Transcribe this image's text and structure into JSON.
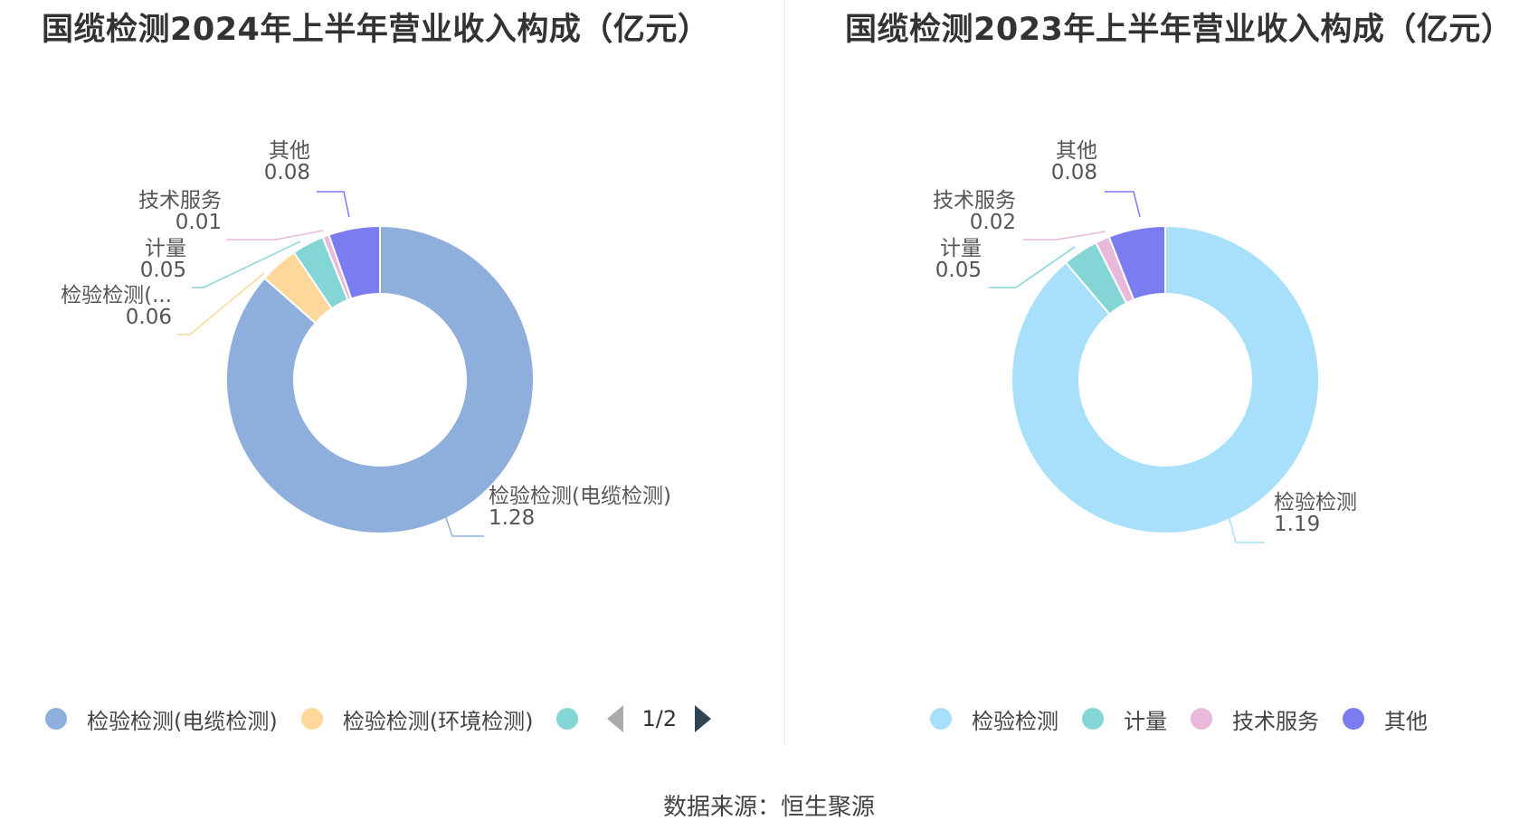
{
  "source": "数据来源：恒生聚源",
  "charts": [
    {
      "title": "国缆检测2024年上半年营业收入构成（亿元）",
      "pager": {
        "page": "1/2"
      },
      "legend": [
        {
          "label": "检验检测(电缆检测)",
          "color": "#8eaedb"
        },
        {
          "label": "检验检测(环境检测)",
          "color": "#fdd89a"
        },
        {
          "label": "",
          "color": "#84d5d6"
        }
      ]
    },
    {
      "title": "国缆检测2023年上半年营业收入构成（亿元）",
      "legend": [
        {
          "label": "检验检测",
          "color": "#a8dffa"
        },
        {
          "label": "计量",
          "color": "#84d5d6"
        },
        {
          "label": "技术服务",
          "color": "#e8b9da"
        },
        {
          "label": "其他",
          "color": "#7b7cf0"
        }
      ]
    }
  ],
  "chart_data": [
    {
      "type": "pie",
      "title": "国缆检测2024年上半年营业收入构成（亿元）",
      "categories": [
        "检验检测(电缆检测)",
        "检验检测(环境检测)",
        "计量",
        "技术服务",
        "其他"
      ],
      "values": [
        1.28,
        0.06,
        0.05,
        0.01,
        0.08
      ],
      "labels": [
        {
          "name": "检验检测(电缆检测)",
          "value": "1.28"
        },
        {
          "name": "检验检测(...",
          "value": "0.06"
        },
        {
          "name": "计量",
          "value": "0.05"
        },
        {
          "name": "技术服务",
          "value": "0.01"
        },
        {
          "name": "其他",
          "value": "0.08"
        }
      ],
      "colors": [
        "#8eaedb",
        "#fdd89a",
        "#84d5d6",
        "#e8b9da",
        "#7b7cf0"
      ]
    },
    {
      "type": "pie",
      "title": "国缆检测2023年上半年营业收入构成（亿元）",
      "categories": [
        "检验检测",
        "计量",
        "技术服务",
        "其他"
      ],
      "values": [
        1.19,
        0.05,
        0.02,
        0.08
      ],
      "labels": [
        {
          "name": "检验检测",
          "value": "1.19"
        },
        {
          "name": "计量",
          "value": "0.05"
        },
        {
          "name": "技术服务",
          "value": "0.02"
        },
        {
          "name": "其他",
          "value": "0.08"
        }
      ],
      "colors": [
        "#a8dffa",
        "#84d5d6",
        "#e8b9da",
        "#7b7cf0"
      ]
    }
  ]
}
